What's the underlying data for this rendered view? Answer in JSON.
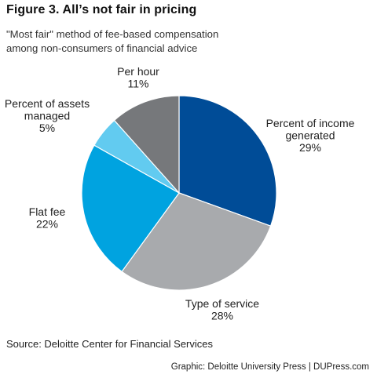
{
  "header": {
    "title": "Figure 3. All’s not fair in pricing",
    "subtitle_lines": [
      "\"Most fair\" method of fee-based compensation",
      "among non-consumers of financial advice"
    ]
  },
  "chart_data": {
    "type": "pie",
    "start_angle_deg": 0,
    "direction": "clockwise",
    "slices": [
      {
        "label_lines": [
          "Percent of income",
          "generated"
        ],
        "value": 29,
        "value_label": "29%",
        "color": "#004c97"
      },
      {
        "label_lines": [
          "Type of service"
        ],
        "value": 28,
        "value_label": "28%",
        "color": "#a8aaad"
      },
      {
        "label_lines": [
          "Flat fee"
        ],
        "value": 22,
        "value_label": "22%",
        "color": "#00a3e0"
      },
      {
        "label_lines": [
          "Percent of assets",
          "managed"
        ],
        "value": 5,
        "value_label": "5%",
        "color": "#62cbf0"
      },
      {
        "label_lines": [
          "Per hour"
        ],
        "value": 11,
        "value_label": "11%",
        "color": "#76787b"
      }
    ]
  },
  "footer": {
    "source": "Source: Deloitte Center for Financial Services",
    "credit": "Graphic: Deloitte University Press  |  DUPress.com"
  }
}
